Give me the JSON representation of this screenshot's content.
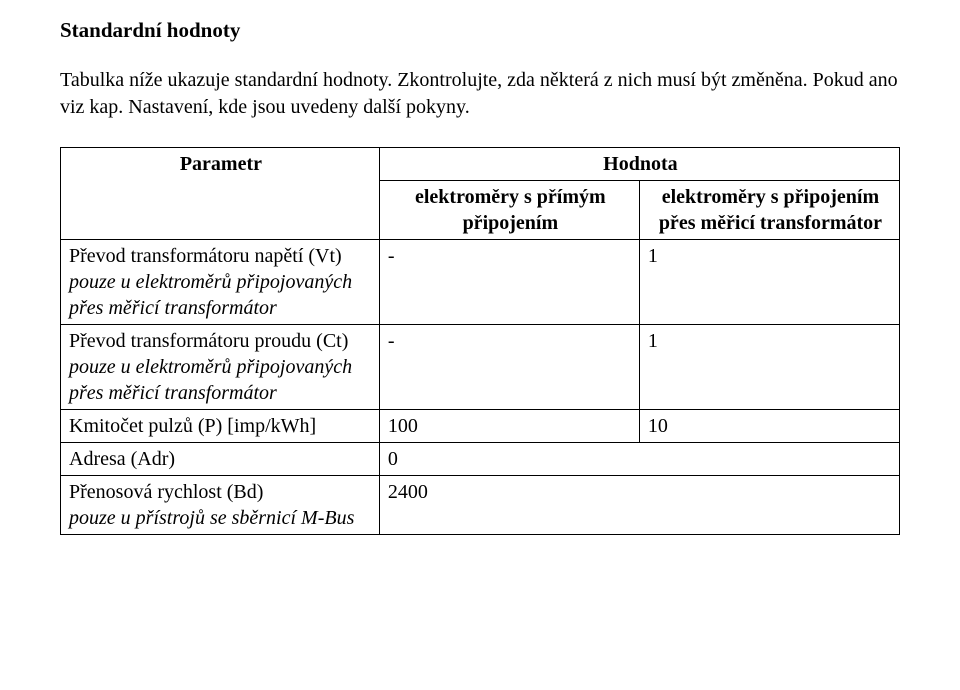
{
  "heading": "Standardní hodnoty",
  "intro": "Tabulka níže ukazuje standardní hodnoty. Zkontrolujte, zda některá z nich musí být změněna. Pokud ano viz kap. Nastavení, kde jsou uvedeny další pokyny.",
  "table": {
    "header": {
      "param": "Parametr",
      "value_group": "Hodnota",
      "col_direct": "elektroměry s přímým připojením",
      "col_trans": "elektroměry s připojením přes měřicí transformátor"
    },
    "rows": [
      {
        "param_main": "Převod transformátoru napětí (Vt)",
        "param_italic": "pouze u elektroměrů připojovaných přes měřicí transformátor",
        "val_direct": "-",
        "val_trans": "1"
      },
      {
        "param_main": "Převod transformátoru proudu (Ct)",
        "param_italic": "pouze u elektroměrů připojovaných přes měřicí transformátor",
        "val_direct": "-",
        "val_trans": "1"
      },
      {
        "param_main": "Kmitočet pulzů (P) [imp/kWh]",
        "param_italic": "",
        "val_direct": "100",
        "val_trans": "10"
      },
      {
        "param_main": "Adresa (Adr)",
        "param_italic": "",
        "val_direct": "0",
        "val_trans": ""
      },
      {
        "param_main": "Přenosová rychlost (Bd)",
        "param_italic": "pouze u přístrojů se sběrnicí M-Bus",
        "val_direct": "2400",
        "val_trans": ""
      }
    ]
  },
  "style": {
    "background_color": "#ffffff",
    "text_color": "#000000",
    "border_color": "#000000",
    "font_family": "Times New Roman",
    "heading_fontsize": 21,
    "body_fontsize": 20,
    "heading_weight": "bold"
  }
}
